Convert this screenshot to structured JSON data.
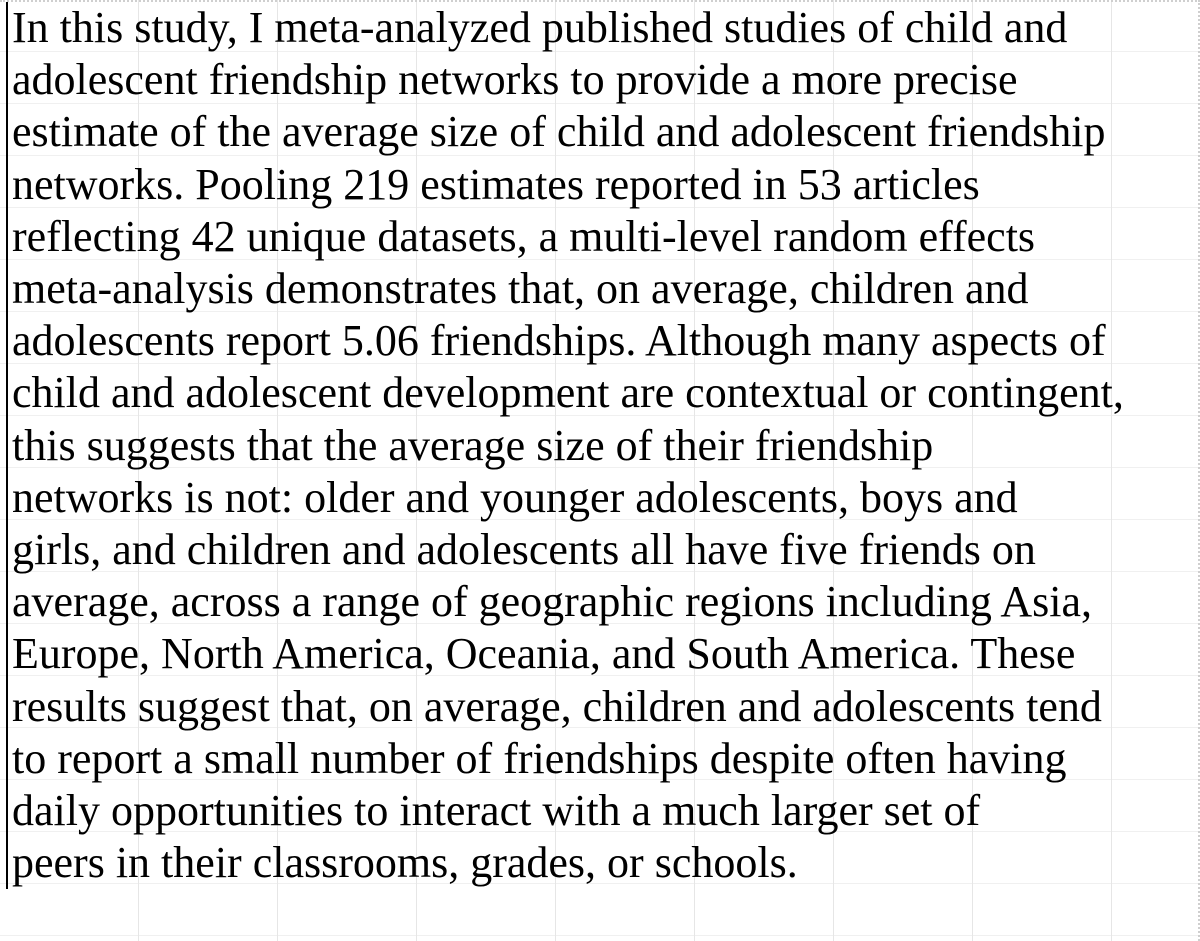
{
  "document": {
    "lines": [
      "In this study, I meta-analyzed published studies of child and",
      "adolescent friendship networks to provide a more precise",
      "estimate of the average size of child and adolescent friendship",
      "networks. Pooling 219 estimates reported in 53 articles",
      "reflecting 42 unique datasets, a multi-level random effects",
      "meta-analysis demonstrates that, on average, children and",
      "adolescents report 5.06 friendships. Although many aspects of",
      "child and adolescent development are contextual or contingent,",
      "this suggests that the average size of their friendship",
      "networks is not: older and younger adolescents, boys and",
      "girls, and children and adolescents all have five friends on",
      "average, across a range of geographic regions including Asia,",
      "Europe, North America, Oceania, and South America. These",
      "results suggest that, on average, children and adolescents tend",
      "to report a small number of friendships despite often having",
      "daily opportunities to interact with a much larger set of",
      "peers in their classrooms, grades, or schools."
    ]
  }
}
